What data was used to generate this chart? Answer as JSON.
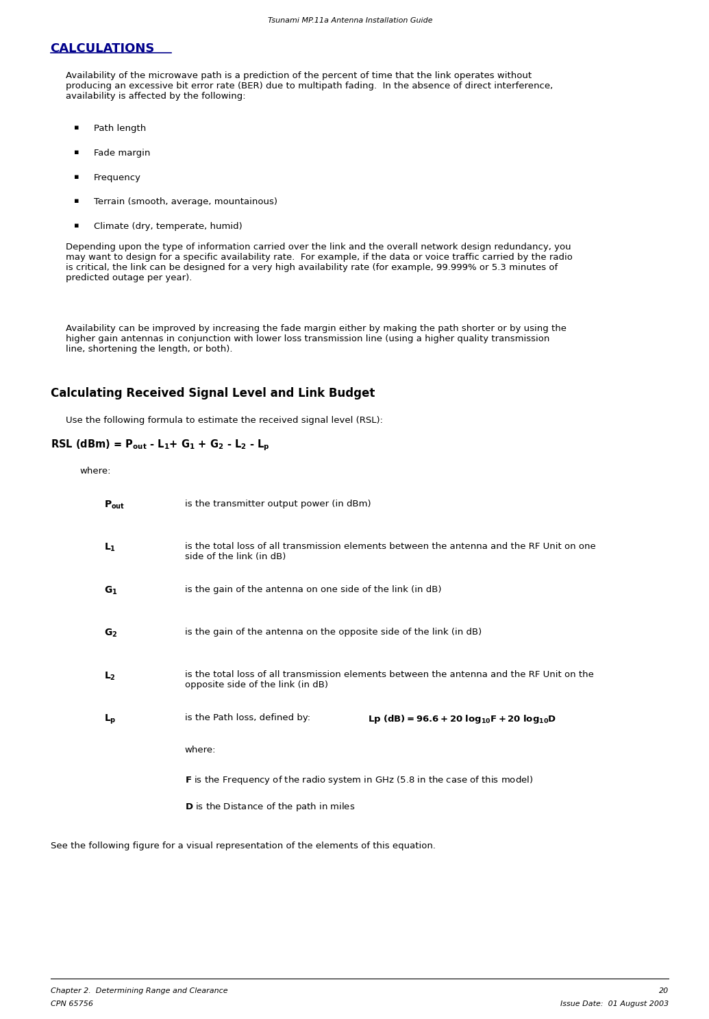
{
  "header_title": "Tsunami MP.11a Antenna Installation Guide",
  "section_title": "CALCULATIONS",
  "body_color": "#000000",
  "title_color": "#00008B",
  "page_bg": "#ffffff",
  "footer_left_line1": "Chapter 2.  Determining Range and Clearance",
  "footer_left_line2": "CPN 65756",
  "footer_right_line1": "20",
  "footer_right_line2": "Issue Date:  01 August 2003",
  "bullets": [
    "Path length",
    "Fade margin",
    "Frequency",
    "Terrain (smooth, average, mountainous)",
    "Climate (dry, temperate, humid)"
  ],
  "subsection_title": "Calculating Received Signal Level and Link Budget"
}
